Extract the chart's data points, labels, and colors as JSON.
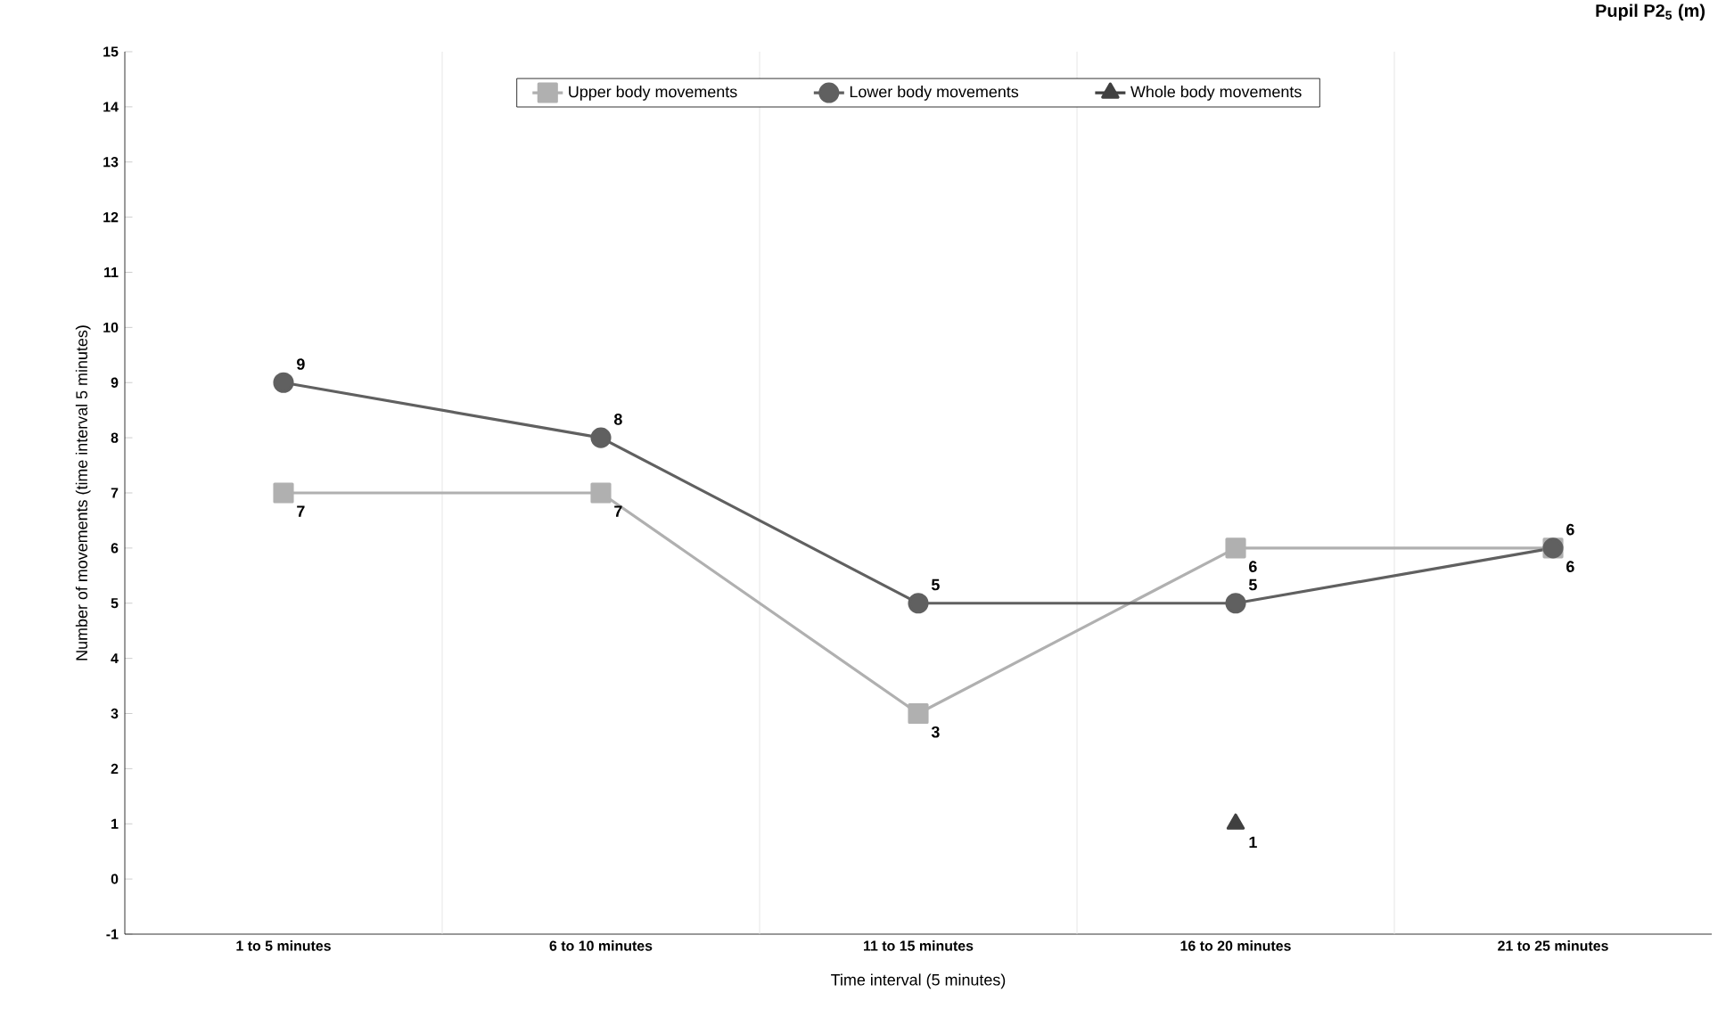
{
  "chart_data": {
    "type": "line",
    "title": "Pupil P2$_{5}$ (m)",
    "xlabel": "Time interval (5 minutes)",
    "ylabel": "Number of movements (time interval 5 minutes)",
    "categories": [
      "1 to 5 minutes",
      "6 to 10 minutes",
      "11 to 15 minutes",
      "16 to 20 minutes",
      "21 to 25 minutes"
    ],
    "series": [
      {
        "name": "Upper body movements",
        "color": "#b0b0b0",
        "marker": "square",
        "values": [
          7,
          7,
          3,
          6,
          6
        ]
      },
      {
        "name": "Lower body movements",
        "color": "#606060",
        "marker": "circle",
        "values": [
          9,
          8,
          5,
          5,
          6
        ]
      },
      {
        "name": "Whole body movements",
        "color": "#404040",
        "marker": "triangle",
        "values": [
          null,
          null,
          null,
          1,
          null
        ]
      }
    ],
    "ylim": [
      -1,
      15
    ],
    "yticks": [
      -1,
      0,
      1,
      2,
      3,
      4,
      5,
      6,
      7,
      8,
      9,
      10,
      11,
      12,
      13,
      14,
      15
    ],
    "grid": "x",
    "legend": "top",
    "data_labels": true
  }
}
